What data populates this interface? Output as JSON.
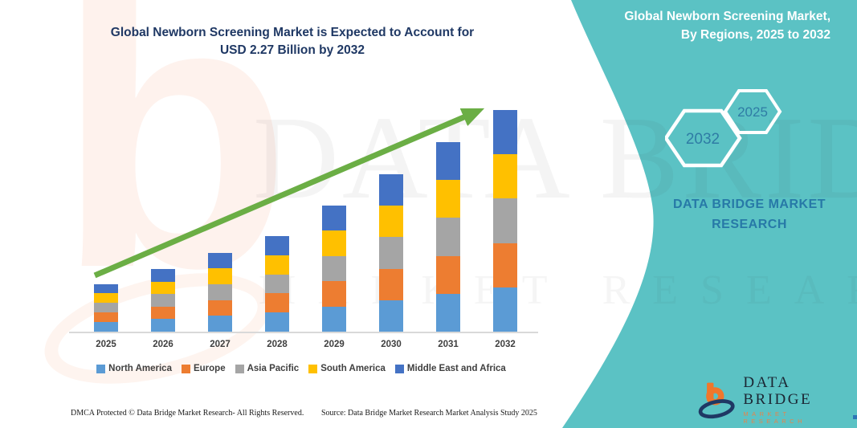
{
  "colors": {
    "teal": "#5BC2C4",
    "title_navy": "#1F3864",
    "panel_text_blue": "#2779A7",
    "axis_text": "#3F3F3F",
    "arrow_green": "#6BAE45",
    "baseline_gray": "#D9D9D9",
    "logo_orange": "#F0772B",
    "logo_navy": "#1F3864"
  },
  "main_title": {
    "line1": "Global Newborn Screening Market is Expected to Account for",
    "line2": "USD 2.27 Billion by 2032"
  },
  "side_panel": {
    "title_line1": "Global Newborn Screening Market,",
    "title_line2": "By Regions, 2025 to 2032",
    "hexagon_back_label": "2025",
    "hexagon_front_label": "2032",
    "brand_line1": "DATA BRIDGE MARKET",
    "brand_line2": "RESEARCH"
  },
  "watermark": {
    "big_letter": "b",
    "wordmark": "DATA BRIDGE",
    "sub_wordmark": "MARKET RESEARCH"
  },
  "chart_data": {
    "type": "bar",
    "stacked": true,
    "title": "Global Newborn Screening Market, By Regions, 2025 to 2032",
    "unit": "USD Billion",
    "categories": [
      "2025",
      "2026",
      "2027",
      "2028",
      "2029",
      "2030",
      "2031",
      "2032"
    ],
    "totals": [
      0.49,
      0.64,
      0.81,
      0.98,
      1.29,
      1.61,
      1.94,
      2.27
    ],
    "series": [
      {
        "name": "North America",
        "color": "#5B9BD5",
        "values": [
          0.098,
          0.128,
          0.162,
          0.196,
          0.258,
          0.322,
          0.388,
          0.454
        ]
      },
      {
        "name": "Europe",
        "color": "#ED7D31",
        "values": [
          0.098,
          0.128,
          0.162,
          0.196,
          0.258,
          0.322,
          0.388,
          0.454
        ]
      },
      {
        "name": "Asia Pacific",
        "color": "#A5A5A5",
        "values": [
          0.098,
          0.128,
          0.162,
          0.196,
          0.258,
          0.322,
          0.388,
          0.454
        ]
      },
      {
        "name": "South America",
        "color": "#FFC000",
        "values": [
          0.098,
          0.128,
          0.162,
          0.196,
          0.258,
          0.322,
          0.388,
          0.454
        ]
      },
      {
        "name": "Middle East and Africa",
        "color": "#4472C4",
        "values": [
          0.098,
          0.128,
          0.162,
          0.196,
          0.258,
          0.322,
          0.388,
          0.454
        ]
      }
    ],
    "ylim": [
      0,
      2.4
    ],
    "grid": false,
    "legend_position": "bottom",
    "annotation": "USD 2.27 Billion by 2032",
    "trend_arrow": {
      "present": true,
      "color": "#6BAE45",
      "direction": "up-right"
    }
  },
  "footer": {
    "left": "DMCA Protected © Data Bridge Market Research-  All Rights Reserved.",
    "right": "Source: Data Bridge Market Research  Market Analysis Study 2025"
  },
  "footer_logo": {
    "title": "DATA BRIDGE",
    "subtitle": "MARKET RESEARCH"
  }
}
